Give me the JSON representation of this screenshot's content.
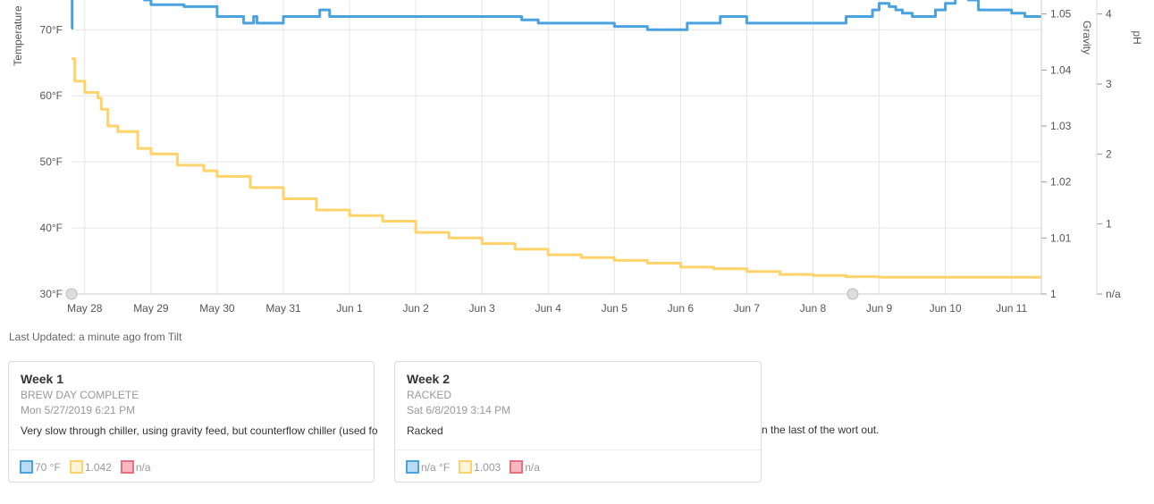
{
  "last_updated": "Last Updated: a minute ago from Tilt",
  "colors": {
    "temperature": "#4aa3df",
    "gravity": "#ffd36b",
    "ph": "#e8707e",
    "grid": "#e6e6e6",
    "axis_text": "#666666"
  },
  "chart_data": {
    "type": "line",
    "x": {
      "tick_labels": [
        "May 28",
        "May 29",
        "May 30",
        "May 31",
        "Jun 1",
        "Jun 2",
        "Jun 3",
        "Jun 4",
        "Jun 5",
        "Jun 6",
        "Jun 7",
        "Jun 8",
        "Jun 9",
        "Jun 10",
        "Jun 11"
      ],
      "range_days": [
        -0.2,
        14.45
      ]
    },
    "y_left": {
      "label": "Temperature",
      "tick_labels": [
        "30°F",
        "40°F",
        "50°F",
        "60°F",
        "70°F"
      ],
      "ticks": [
        30,
        40,
        50,
        60,
        70
      ],
      "range": [
        30,
        74.5
      ]
    },
    "y_right_gravity": {
      "label": "Gravity",
      "tick_labels": [
        "1",
        "1.01",
        "1.02",
        "1.03",
        "1.04",
        "1.05"
      ],
      "ticks": [
        1.0,
        1.01,
        1.02,
        1.03,
        1.04,
        1.05
      ],
      "range": [
        1.0,
        1.0525
      ]
    },
    "y_right_ph": {
      "label": "pH",
      "tick_labels": [
        "n/a",
        "1",
        "2",
        "3",
        "4"
      ],
      "ticks": [
        0,
        1,
        2,
        3,
        4
      ],
      "range": [
        0,
        4.2
      ]
    },
    "series": [
      {
        "axis": "temperature",
        "points": [
          [
            -0.2,
            70.2
          ],
          [
            -0.19,
            75
          ],
          [
            0.9,
            74.5
          ],
          [
            1.0,
            73.8
          ],
          [
            1.5,
            73.5
          ],
          [
            2.0,
            72
          ],
          [
            2.4,
            71
          ],
          [
            2.55,
            72
          ],
          [
            2.6,
            71
          ],
          [
            3.0,
            72
          ],
          [
            3.5,
            72
          ],
          [
            3.55,
            73
          ],
          [
            3.7,
            72
          ],
          [
            4.5,
            72
          ],
          [
            5.0,
            72
          ],
          [
            6.0,
            72
          ],
          [
            6.6,
            71.5
          ],
          [
            6.85,
            71
          ],
          [
            7.0,
            71
          ],
          [
            7.6,
            71
          ],
          [
            7.7,
            71
          ],
          [
            8.0,
            70.5
          ],
          [
            8.5,
            70
          ],
          [
            9.1,
            71
          ],
          [
            9.5,
            71
          ],
          [
            9.6,
            72
          ],
          [
            10.0,
            71
          ],
          [
            10.5,
            71
          ],
          [
            11.0,
            71
          ],
          [
            11.4,
            71
          ],
          [
            11.5,
            72
          ],
          [
            11.9,
            73
          ],
          [
            12.0,
            74
          ],
          [
            12.15,
            73.5
          ],
          [
            12.25,
            73
          ],
          [
            12.35,
            72.5
          ],
          [
            12.5,
            72
          ],
          [
            12.7,
            72
          ],
          [
            12.85,
            73
          ],
          [
            13.0,
            74
          ],
          [
            13.15,
            75
          ],
          [
            13.35,
            74.5
          ],
          [
            13.5,
            73
          ],
          [
            13.9,
            73
          ],
          [
            14.0,
            72.5
          ],
          [
            14.2,
            72
          ],
          [
            14.45,
            72
          ]
        ]
      },
      {
        "axis": "gravity",
        "points": [
          [
            -0.2,
            1.042
          ],
          [
            -0.15,
            1.038
          ],
          [
            0.0,
            1.036
          ],
          [
            0.2,
            1.035
          ],
          [
            0.25,
            1.033
          ],
          [
            0.35,
            1.03
          ],
          [
            0.5,
            1.029
          ],
          [
            0.8,
            1.026
          ],
          [
            1.0,
            1.025
          ],
          [
            1.4,
            1.023
          ],
          [
            1.8,
            1.022
          ],
          [
            2.0,
            1.021
          ],
          [
            2.5,
            1.019
          ],
          [
            3.0,
            1.017
          ],
          [
            3.5,
            1.015
          ],
          [
            4.0,
            1.014
          ],
          [
            4.5,
            1.013
          ],
          [
            5.0,
            1.011
          ],
          [
            5.5,
            1.01
          ],
          [
            6.0,
            1.009
          ],
          [
            6.5,
            1.008
          ],
          [
            7.0,
            1.007
          ],
          [
            7.5,
            1.0065
          ],
          [
            8.0,
            1.006
          ],
          [
            8.5,
            1.0055
          ],
          [
            9.0,
            1.0048
          ],
          [
            9.5,
            1.0045
          ],
          [
            10.0,
            1.004
          ],
          [
            10.5,
            1.0035
          ],
          [
            11.0,
            1.0033
          ],
          [
            11.5,
            1.0031
          ],
          [
            12.0,
            1.003
          ],
          [
            13.0,
            1.003
          ],
          [
            14.45,
            1.003
          ]
        ]
      }
    ],
    "markers_days": [
      -0.2,
      11.6
    ]
  },
  "cards": [
    {
      "title": "Week 1",
      "status": "BREW DAY COMPLETE",
      "date": "Mon 5/27/2019 6:21 PM",
      "note": "Very slow through chiller, using gravity feed, but counterflow chiller (used fo",
      "temp": "70 °F",
      "gravity": "1.042",
      "ph": "n/a"
    },
    {
      "title": "Week 2",
      "status": "RACKED",
      "date": "Sat 6/8/2019 3:14 PM",
      "note": "Racked",
      "temp": "n/a °F",
      "gravity": "1.003",
      "ph": "n/a"
    }
  ],
  "card1_note_overflow": "n the last of the wort out."
}
